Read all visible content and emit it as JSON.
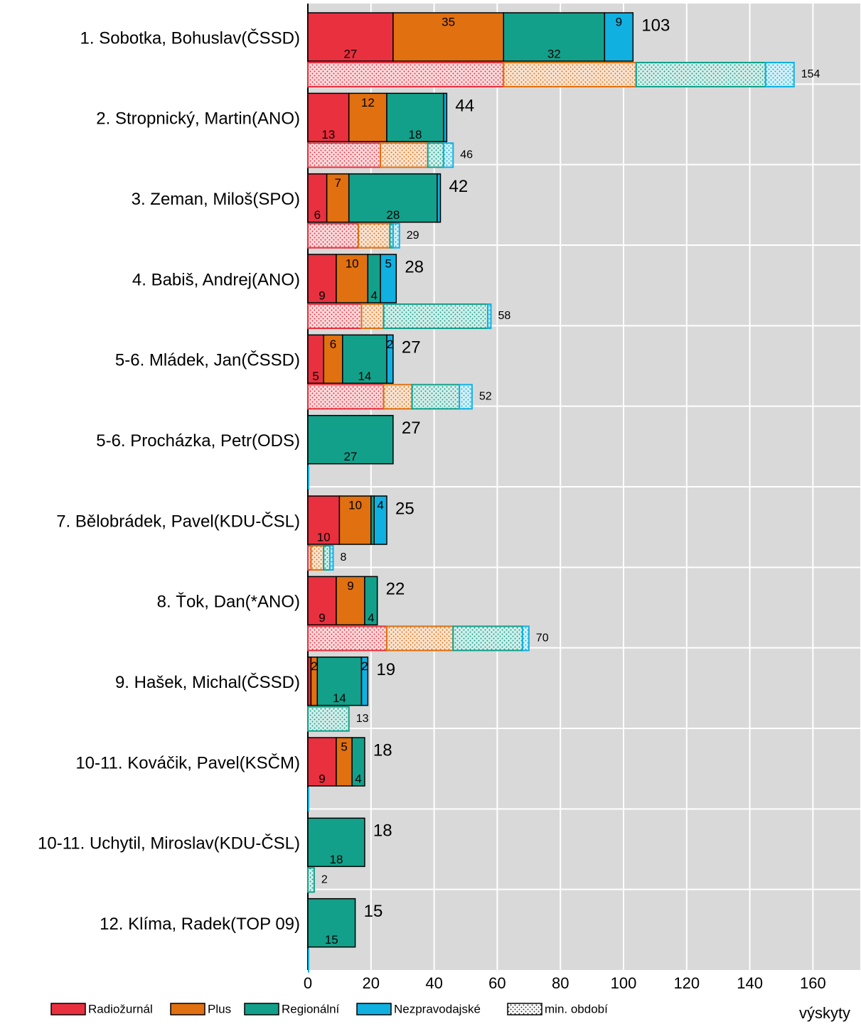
{
  "chart_data": {
    "type": "stacked-hbar",
    "categories": [
      "1. Sobotka, Bohuslav(ČSSD)",
      "2. Stropnický, Martin(ANO)",
      "3. Zeman, Miloš(SPO)",
      "4. Babiš, Andrej(ANO)",
      "5-6. Mládek, Jan(ČSSD)",
      "5-6. Procházka, Petr(ODS)",
      "7. Bělobrádek, Pavel(KDU-ČSL)",
      "8. Ťok, Dan(*ANO)",
      "9. Hašek, Michal(ČSSD)",
      "10-11. Kováčik, Pavel(KSČM)",
      "10-11. Uchytil, Miroslav(KDU-ČSL)",
      "12. Klíma, Radek(TOP 09)"
    ],
    "series": [
      {
        "name": "Radiožurnál",
        "color": "#e8303f",
        "values": [
          27,
          13,
          6,
          9,
          5,
          0,
          10,
          9,
          1,
          9,
          0,
          0
        ]
      },
      {
        "name": "Plus",
        "color": "#e07010",
        "values": [
          35,
          12,
          7,
          10,
          6,
          0,
          10,
          9,
          2,
          5,
          0,
          0
        ]
      },
      {
        "name": "Regionální",
        "color": "#13a08a",
        "values": [
          32,
          18,
          28,
          4,
          14,
          27,
          1,
          4,
          14,
          4,
          18,
          15
        ]
      },
      {
        "name": "Nezpravodajské",
        "color": "#10b0e0",
        "values": [
          9,
          1,
          1,
          5,
          2,
          0,
          4,
          0,
          2,
          0,
          0,
          0
        ]
      }
    ],
    "totals": [
      103,
      44,
      42,
      28,
      27,
      27,
      25,
      22,
      19,
      18,
      18,
      15
    ],
    "previous_period": {
      "name": "min. období",
      "series": [
        {
          "values": [
            62,
            23,
            16,
            17,
            24,
            0,
            1,
            25,
            0,
            0,
            0,
            0
          ]
        },
        {
          "values": [
            42,
            15,
            10,
            7,
            9,
            0,
            4,
            21,
            0,
            0,
            0,
            0
          ]
        },
        {
          "values": [
            41,
            5,
            1,
            33,
            15,
            0,
            2,
            22,
            13,
            0,
            2,
            0
          ]
        },
        {
          "values": [
            9,
            3,
            2,
            1,
            4,
            0,
            1,
            2,
            0,
            0,
            0,
            0
          ]
        }
      ],
      "totals": [
        154,
        46,
        29,
        58,
        52,
        null,
        8,
        70,
        13,
        null,
        2,
        null
      ]
    },
    "xlabel": "výskyty",
    "xlim": [
      0,
      175
    ],
    "xticks": [
      0,
      20,
      40,
      60,
      80,
      100,
      120,
      140,
      160
    ],
    "grid": true
  }
}
